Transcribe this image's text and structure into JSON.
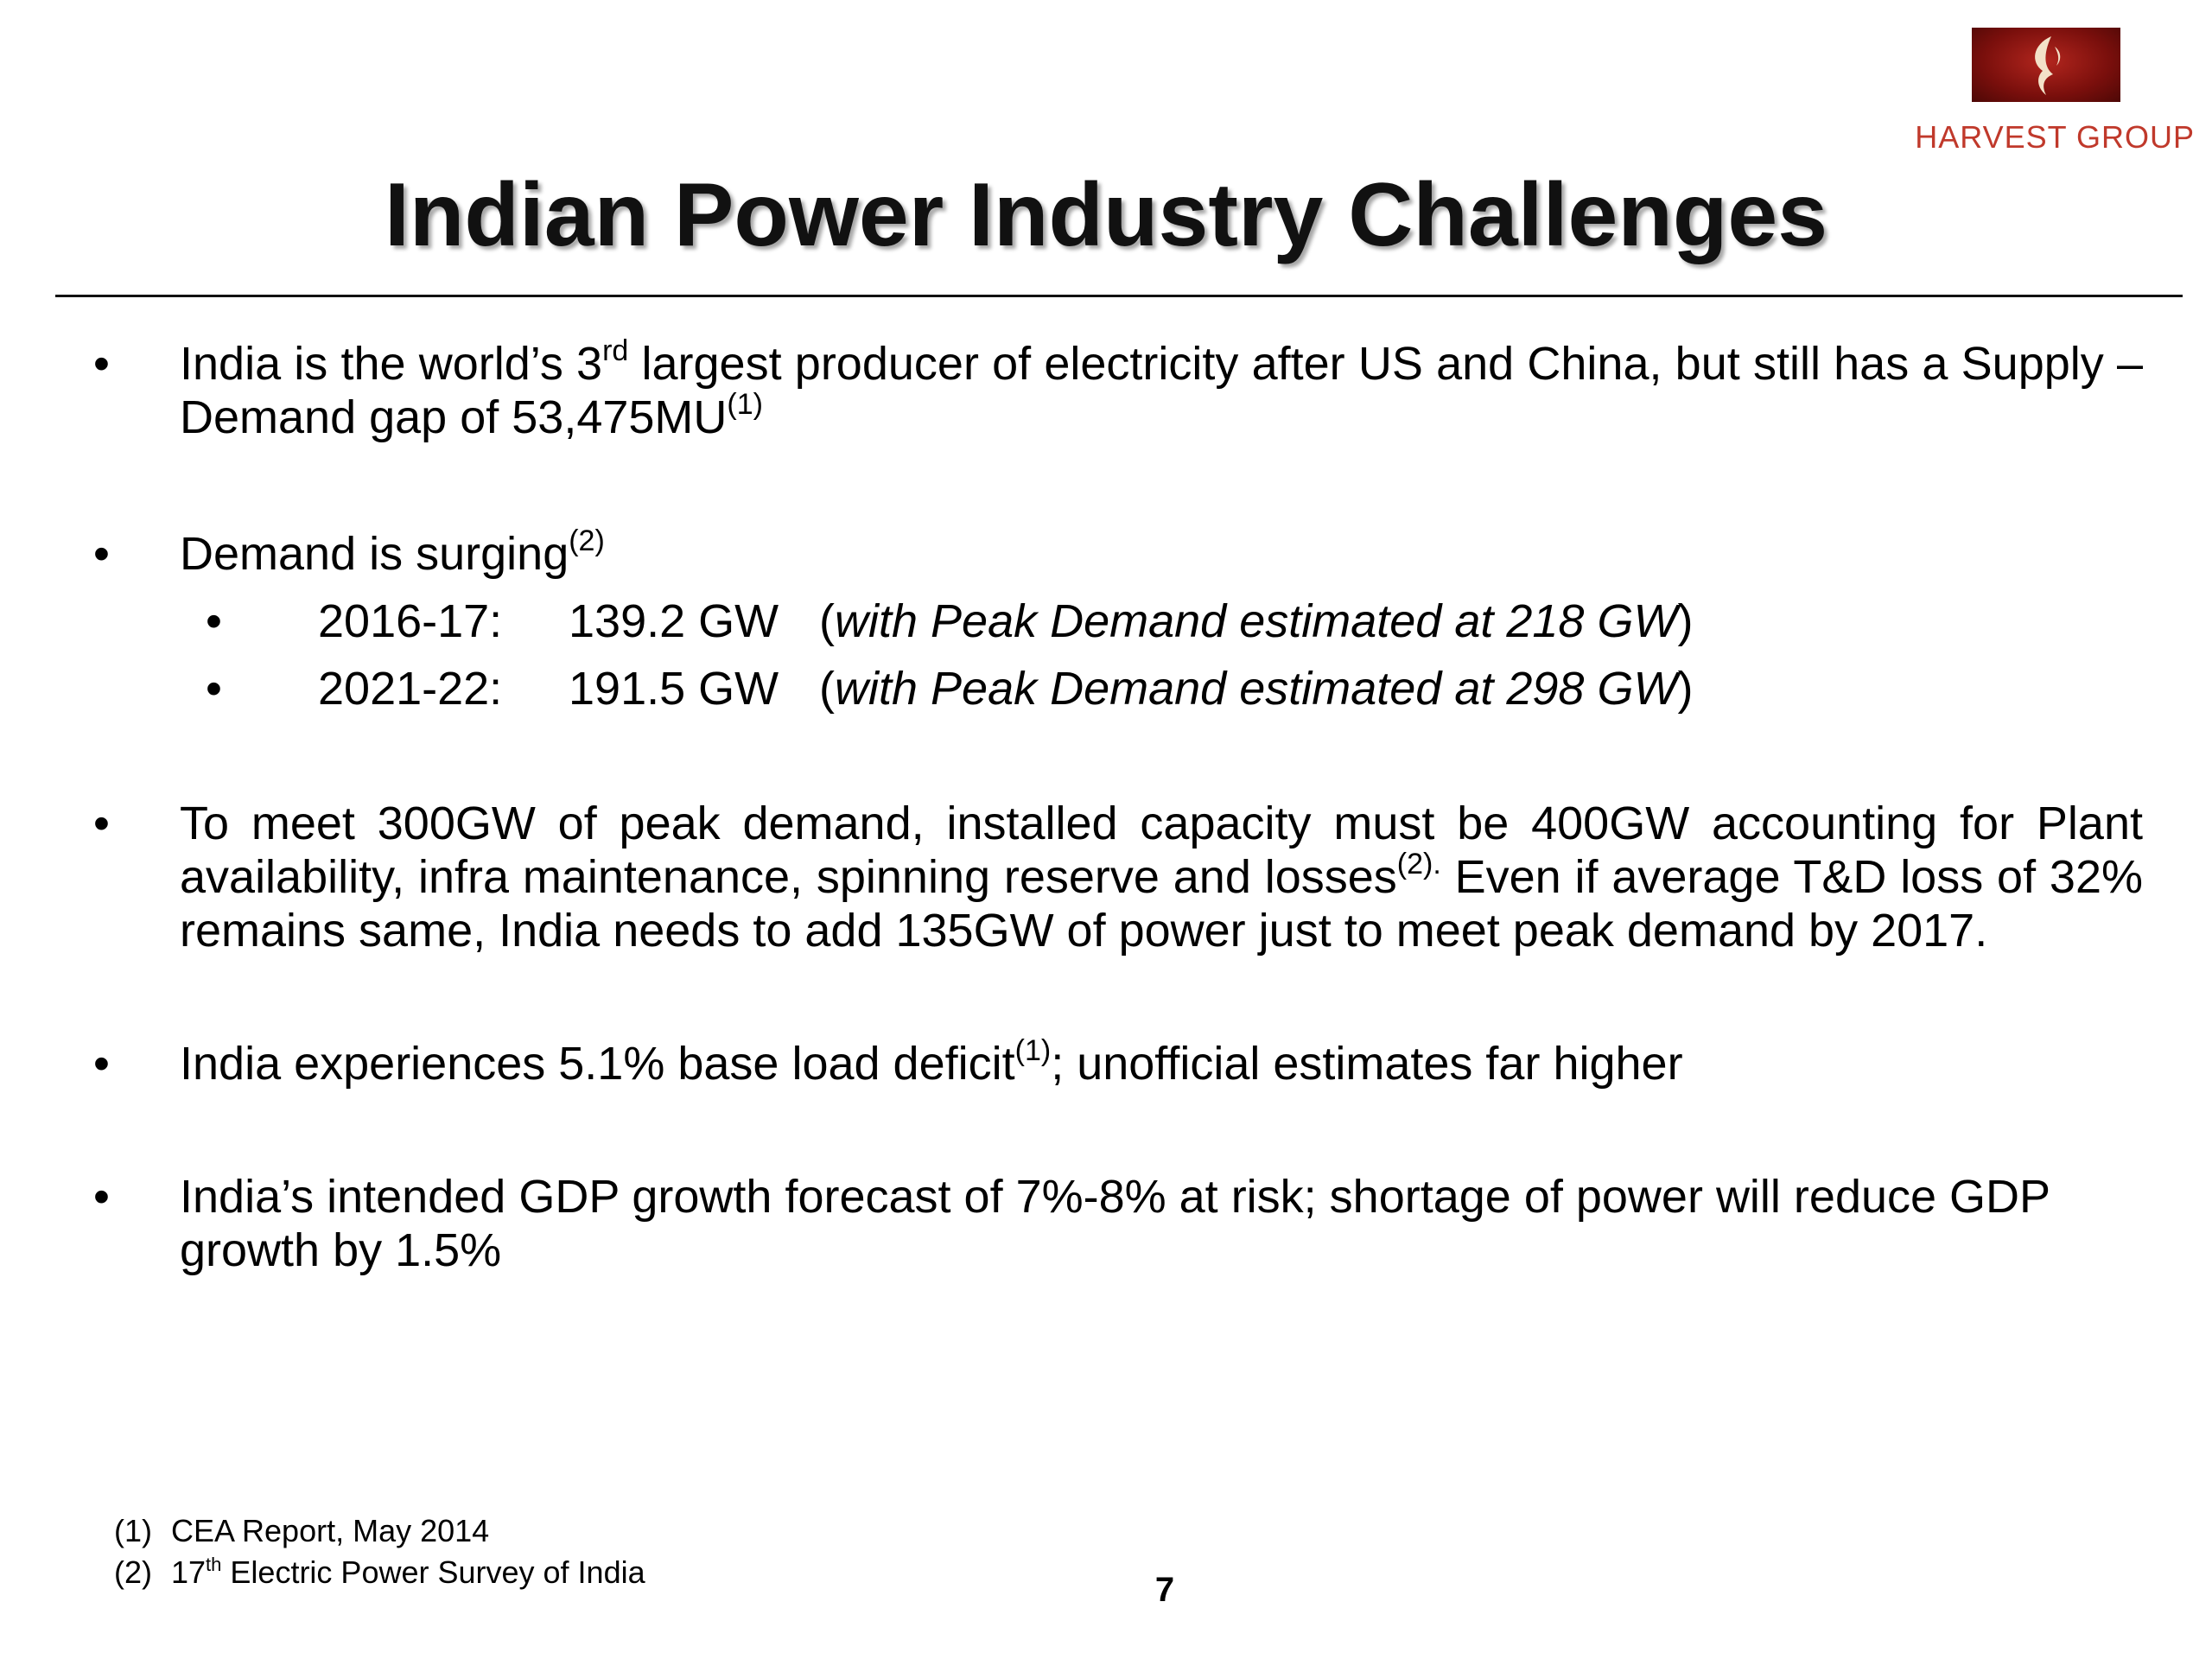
{
  "logo": {
    "icon": "flame-swirl-icon",
    "text": "HARVEST GROUP",
    "colors": {
      "box": "#7a0f0c",
      "text": "#c0392b"
    }
  },
  "title": "Indian Power Industry Challenges",
  "bullets": {
    "b1": {
      "pre": "India is the world’s 3",
      "sup1": "rd",
      "mid": " largest producer of electricity after US and China, but still has a Supply – Demand gap of 53,475MU",
      "sup2": "(1)"
    },
    "b2": {
      "text": "Demand is  surging",
      "sup": "(2)",
      "subs": [
        {
          "year": "2016-17:",
          "gw": "139.2 GW",
          "open": "(",
          "note": "with Peak Demand estimated at 218 GW",
          "close": ")"
        },
        {
          "year": "2021-22:",
          "gw": "191.5 GW",
          "open": "(",
          "note": "with Peak Demand estimated at 298 GW",
          "close": ")"
        }
      ]
    },
    "b3": {
      "pre": "To meet 300GW of peak demand, installed capacity must be 400GW accounting for Plant availability, infra maintenance, spinning reserve and losses",
      "sup": "(2).",
      "post": " Even if average T&D loss of 32% remains same, India needs to add 135GW of power just to meet peak demand by 2017."
    },
    "b4": {
      "pre": "India experiences 5.1% base load deficit",
      "sup": "(1)",
      "post": "; unofficial estimates far higher"
    },
    "b5": {
      "text": "India’s intended GDP growth forecast of 7%-8% at risk; shortage of power will reduce GDP growth by 1.5%"
    }
  },
  "bullet_symbol": "•",
  "footnotes": {
    "f1": {
      "num": "(1)",
      "text": "CEA Report, May 2014"
    },
    "f2": {
      "num": "(2)",
      "pre": "17",
      "sup": "th",
      "post": " Electric Power Survey of India"
    }
  },
  "page_number": "7"
}
